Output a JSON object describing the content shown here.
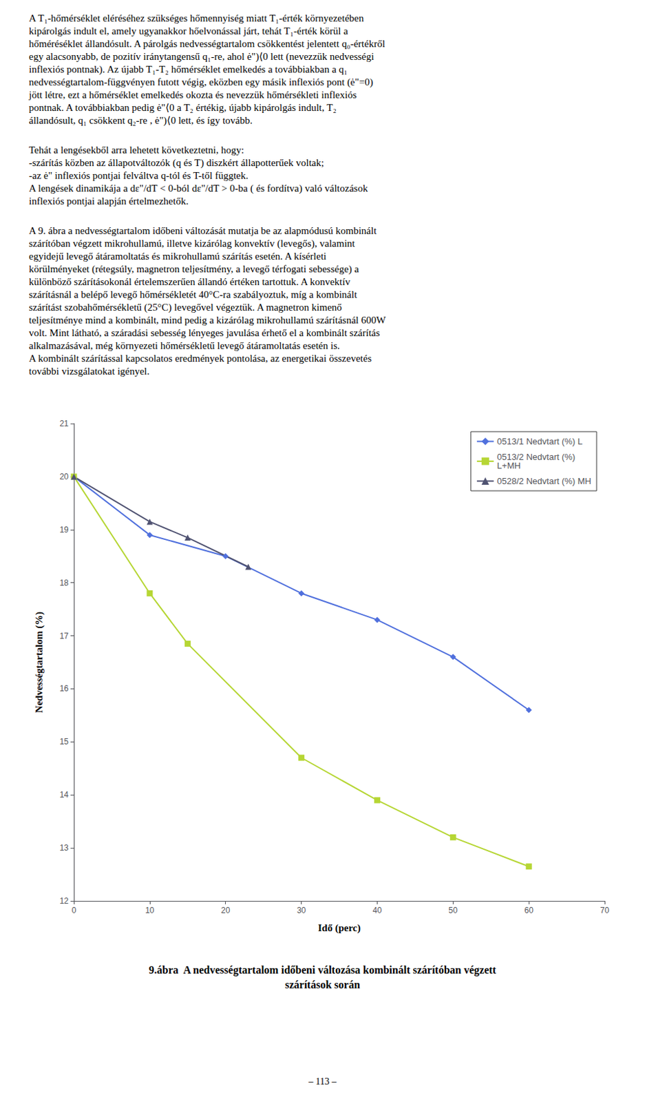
{
  "text_blocks": [
    [
      "A T₁-hőmérséklet eléréséhez szükséges hőmennyiség miatt T₁-érték környezetében",
      "kipárolgás indult el, amely ugyanakkor hőelvonással járt, tehát T₁-érték körül a",
      "hőméréséklet állandósult. A párolgás nedvességtartalom csökkentést jelentett q₀-értékről",
      "egy alacsonyabb, de pozitív iránytangensű q₁-re, ahol ė\")⟨0 lett (nevezzük nedvességi",
      "inflexiós pontnak). Az újabb T₁-T₂ hőmérséklet emelkedés a továbbiakban a q₁",
      "nedvességtartalom-függvényen futott végig, eközben egy másik inflexiós pont (ė\"=0)",
      "jött létre, ezt a hőmérséklet emelkedés okozta és nevezzük hőmérsékleti inflexiós",
      "pontnak. A továbbiakban pedig ė\"⟨0 a T₂ értékig, újabb kipárolgás indult, T₂",
      "állandósult, q₁ csökkent q₂-re , ė\")⟨0 lett, és így tovább."
    ],
    [
      "Tehát a lengésekből arra lehetett következtetni, hogy:",
      "-szárítás közben az állapotváltozók (q és T) diszkért állapotterűek voltak;",
      "-az ė\" inflexiós pontjai felváltva q-tól és T-től függtek.",
      "A lengések dinamikája a dε\"/dT < 0-ból dε\"/dT > 0-ba ( és fordítva) való változások",
      "inflexiós pontjai alapján értelmezhetők."
    ],
    [
      "A 9. ábra a nedvességtartalom időbeni változását mutatja be az alapmódusú kombinált",
      "szárítóban végzett mikrohullamú, illetve kizárólag konvektív (levegős), valamint",
      "egyidejű levegő átáramoltatás és mikrohullamú szárítás esetén. A kísérleti",
      "körülményeket (rétegsúly, magnetron teljesítmény, a levegő térfogati sebessége) a",
      "különböző szárításokonál értelemszerűen állandó értéken tartottuk. A konvektív",
      "szárításnál a belépő levegő hőmérsékletét 40°C-ra szabályoztuk, míg a kombinált",
      "szárítást szobahőmérsékletű (25°C) levegővel végeztük. A magnetron kimenő",
      "teljesítménye mind a kombinált, mind pedig a kizárólag mikrohullamú szárításnál 600W",
      "volt. Mint látható, a száradási sebesség lényeges javulása érhető el a kombinált szárítás",
      "alkalmazásával, még környezeti hőmérsékletű levegő átáramoltatás esetén is.",
      "A kombinált szárítással kapcsolatos eredmények pontolása, az energetikai összevetés",
      "további vizsgálatokat igényel."
    ]
  ],
  "page_number": "– 113 –",
  "chart_data": {
    "type": "line",
    "title": "9.ábra  A nedvességtartalom időbeni változása kombinált szárítóban végzett\nszárítások során",
    "xlabel": "Idő (perc)",
    "ylabel": "Nedvességtartalom (%)",
    "xlim": [
      0,
      70
    ],
    "ylim": [
      12,
      21
    ],
    "xticks": [
      0,
      10,
      20,
      30,
      40,
      50,
      60,
      70
    ],
    "yticks": [
      12,
      13,
      14,
      15,
      16,
      17,
      18,
      19,
      20,
      21
    ],
    "grid": false,
    "legend": "upper right",
    "series": [
      {
        "name": "0513/1 Nedvtart (%) L",
        "marker": "diamond",
        "x": [
          0,
          10,
          20,
          30,
          40,
          50,
          60
        ],
        "values": [
          20.0,
          18.9,
          18.5,
          17.8,
          17.3,
          16.6,
          15.6
        ]
      },
      {
        "name": "0513/2 Nedvtart (%)\nL+MH",
        "marker": "square",
        "x": [
          0,
          10,
          15,
          30,
          40,
          50,
          60
        ],
        "values": [
          20.0,
          17.8,
          16.85,
          14.7,
          13.9,
          13.2,
          12.65
        ]
      },
      {
        "name": "0528/2 Nedvtart (%) MH",
        "marker": "triangle",
        "x": [
          0,
          10,
          15,
          23
        ],
        "values": [
          20.0,
          19.15,
          18.85,
          18.3
        ]
      }
    ]
  }
}
